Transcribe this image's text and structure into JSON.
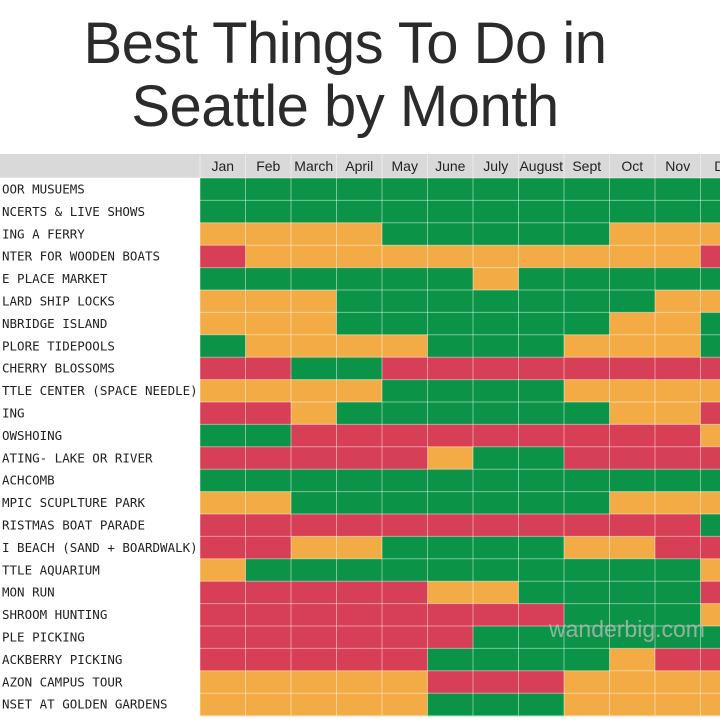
{
  "title": {
    "line1": "Best Things To Do in",
    "line2": "Seattle by Month"
  },
  "watermark": "wanderbig.com",
  "colors": {
    "best": "#0b9448",
    "good": "#f3ab45",
    "avoid": "#d73f57",
    "header_bg": "#d9d9d9",
    "label_bg": "#ffffff",
    "gridline": "#ffffff"
  },
  "chart_data": {
    "type": "heatmap",
    "title": "Best Things To Do in Seattle by Month",
    "months": [
      "Jan",
      "Feb",
      "March",
      "April",
      "May",
      "June",
      "July",
      "August",
      "Sept",
      "Oct",
      "Nov",
      "De"
    ],
    "value_codes": {
      "G": "green",
      "O": "orange",
      "R": "red"
    },
    "rows": [
      {
        "label": "OOR MUSUEMS",
        "values": [
          "G",
          "G",
          "G",
          "G",
          "G",
          "G",
          "G",
          "G",
          "G",
          "G",
          "G",
          "G"
        ]
      },
      {
        "label": "NCERTS & LIVE SHOWS",
        "values": [
          "G",
          "G",
          "G",
          "G",
          "G",
          "G",
          "G",
          "G",
          "G",
          "G",
          "G",
          "G"
        ]
      },
      {
        "label": "ING A FERRY",
        "values": [
          "O",
          "O",
          "O",
          "O",
          "G",
          "G",
          "G",
          "G",
          "G",
          "O",
          "O",
          "O"
        ]
      },
      {
        "label": "NTER FOR WOODEN BOATS",
        "values": [
          "R",
          "O",
          "O",
          "O",
          "O",
          "O",
          "O",
          "O",
          "O",
          "O",
          "O",
          "R"
        ]
      },
      {
        "label": "E PLACE MARKET",
        "values": [
          "G",
          "G",
          "G",
          "G",
          "G",
          "G",
          "O",
          "G",
          "G",
          "G",
          "G",
          "G"
        ]
      },
      {
        "label": "LARD SHIP LOCKS",
        "values": [
          "O",
          "O",
          "O",
          "G",
          "G",
          "G",
          "G",
          "G",
          "G",
          "G",
          "O",
          "O"
        ]
      },
      {
        "label": "NBRIDGE ISLAND",
        "values": [
          "O",
          "O",
          "O",
          "G",
          "G",
          "G",
          "G",
          "G",
          "G",
          "O",
          "O",
          "G"
        ]
      },
      {
        "label": "PLORE TIDEPOOLS",
        "values": [
          "G",
          "O",
          "O",
          "O",
          "O",
          "G",
          "G",
          "G",
          "O",
          "O",
          "O",
          "G"
        ]
      },
      {
        "label": "CHERRY BLOSSOMS",
        "values": [
          "R",
          "R",
          "G",
          "G",
          "R",
          "R",
          "R",
          "R",
          "R",
          "R",
          "R",
          "R"
        ]
      },
      {
        "label": "TTLE CENTER (SPACE NEEDLE)",
        "values": [
          "O",
          "O",
          "O",
          "O",
          "G",
          "G",
          "G",
          "G",
          "O",
          "O",
          "O",
          "O"
        ]
      },
      {
        "label": "ING",
        "values": [
          "R",
          "R",
          "O",
          "G",
          "G",
          "G",
          "G",
          "G",
          "G",
          "O",
          "O",
          "R"
        ]
      },
      {
        "label": "OWSHOING",
        "values": [
          "G",
          "G",
          "R",
          "R",
          "R",
          "R",
          "R",
          "R",
          "R",
          "R",
          "R",
          "O"
        ]
      },
      {
        "label": "ATING- LAKE OR RIVER",
        "values": [
          "R",
          "R",
          "R",
          "R",
          "R",
          "O",
          "G",
          "G",
          "R",
          "R",
          "R",
          "R"
        ]
      },
      {
        "label": "ACHCOMB",
        "values": [
          "G",
          "G",
          "G",
          "G",
          "G",
          "G",
          "G",
          "G",
          "G",
          "G",
          "G",
          "G"
        ]
      },
      {
        "label": "MPIC SCUPLTURE PARK",
        "values": [
          "O",
          "O",
          "G",
          "G",
          "G",
          "G",
          "G",
          "G",
          "G",
          "O",
          "O",
          "O"
        ]
      },
      {
        "label": "RISTMAS BOAT PARADE",
        "values": [
          "R",
          "R",
          "R",
          "R",
          "R",
          "R",
          "R",
          "R",
          "R",
          "R",
          "R",
          "G"
        ]
      },
      {
        "label": "I BEACH (SAND + BOARDWALK)",
        "values": [
          "R",
          "R",
          "O",
          "O",
          "G",
          "G",
          "G",
          "G",
          "O",
          "O",
          "R",
          "R"
        ]
      },
      {
        "label": "TTLE AQUARIUM",
        "values": [
          "O",
          "G",
          "G",
          "G",
          "G",
          "G",
          "G",
          "G",
          "G",
          "G",
          "G",
          "O"
        ]
      },
      {
        "label": "MON RUN",
        "values": [
          "R",
          "R",
          "R",
          "R",
          "R",
          "O",
          "O",
          "G",
          "G",
          "G",
          "G",
          "R"
        ]
      },
      {
        "label": "SHROOM HUNTING",
        "values": [
          "R",
          "R",
          "R",
          "R",
          "R",
          "R",
          "R",
          "R",
          "G",
          "G",
          "G",
          "O"
        ]
      },
      {
        "label": "PLE PICKING",
        "values": [
          "R",
          "R",
          "R",
          "R",
          "R",
          "R",
          "G",
          "G",
          "G",
          "G",
          "G",
          "G"
        ]
      },
      {
        "label": "ACKBERRY PICKING",
        "values": [
          "R",
          "R",
          "R",
          "R",
          "R",
          "G",
          "G",
          "G",
          "G",
          "O",
          "R",
          "R"
        ]
      },
      {
        "label": "AZON CAMPUS TOUR",
        "values": [
          "O",
          "O",
          "O",
          "O",
          "O",
          "R",
          "R",
          "R",
          "O",
          "O",
          "O",
          "O"
        ]
      },
      {
        "label": "NSET AT GOLDEN GARDENS",
        "values": [
          "O",
          "O",
          "O",
          "O",
          "O",
          "G",
          "G",
          "G",
          "O",
          "O",
          "O",
          "O"
        ]
      }
    ]
  }
}
